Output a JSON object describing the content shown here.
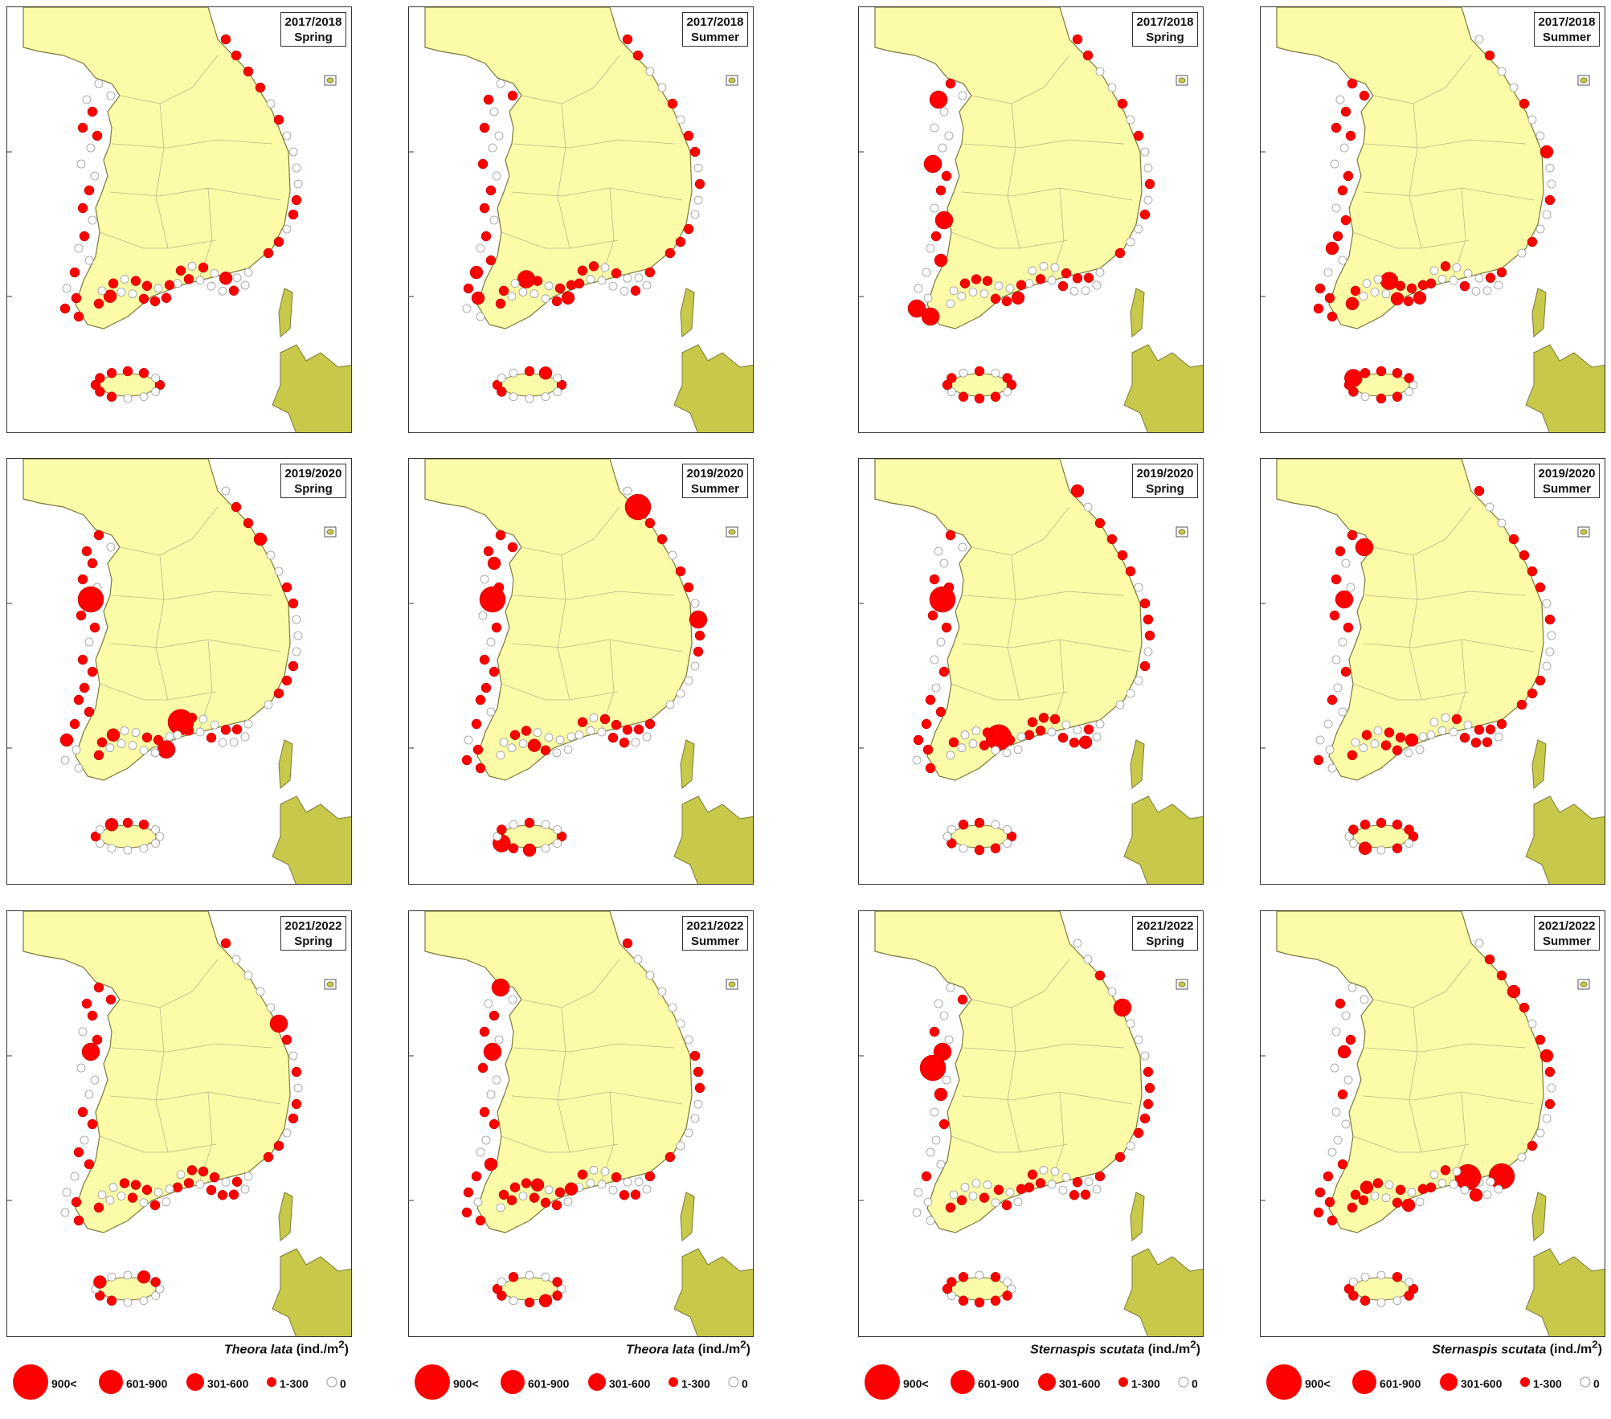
{
  "colors": {
    "land": "#fcfca8",
    "outer_land": "#c8c84a",
    "coast": "#7a7a3a",
    "present": "#ff0000",
    "absent": "#ffffff",
    "absent_stroke": "#999999"
  },
  "panels": [
    {
      "period": "2017/2018",
      "season": "Spring"
    },
    {
      "period": "2017/2018",
      "season": "Summer"
    },
    {
      "period": "2017/2018",
      "season": "Spring"
    },
    {
      "period": "2017/2018",
      "season": "Summer"
    },
    {
      "period": "2019/2020",
      "season": "Spring"
    },
    {
      "period": "2019/2020",
      "season": "Summer"
    },
    {
      "period": "2019/2020",
      "season": "Spring"
    },
    {
      "period": "2019/2020",
      "season": "Summer"
    },
    {
      "period": "2021/2022",
      "season": "Spring"
    },
    {
      "period": "2021/2022",
      "season": "Summer"
    },
    {
      "period": "2021/2022",
      "season": "Spring"
    },
    {
      "period": "2021/2022",
      "season": "Summer"
    }
  ],
  "legends": [
    {
      "species": "Theora lata",
      "unit_prefix": "(ind./m",
      "unit_sup": "2",
      "unit_suffix": ")"
    },
    {
      "species": "Theora lata",
      "unit_prefix": "(ind./m",
      "unit_sup": "2",
      "unit_suffix": ")"
    },
    {
      "species": "Sternaspis scutata",
      "unit_prefix": "(ind./m",
      "unit_sup": "2",
      "unit_suffix": ")"
    },
    {
      "species": "Sternaspis scutata",
      "unit_prefix": "(ind./m",
      "unit_sup": "2",
      "unit_suffix": ")"
    }
  ],
  "legend_classes": [
    {
      "label": "900<",
      "level": 5
    },
    {
      "label": "601-900",
      "level": 4
    },
    {
      "label": "301-600",
      "level": 3
    },
    {
      "label": "1-300",
      "level": 2
    },
    {
      "label": "0",
      "level": 1
    }
  ]
}
